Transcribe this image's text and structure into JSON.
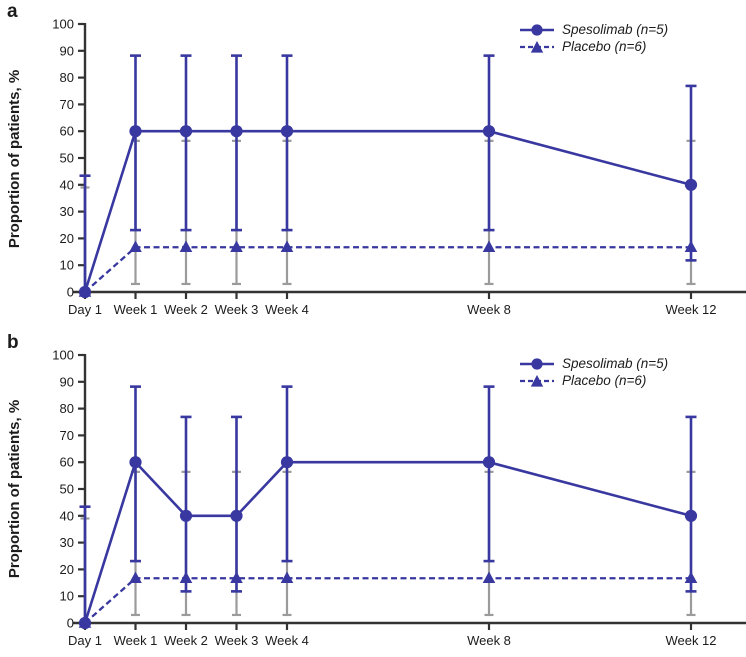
{
  "colors": {
    "series_blue": "#3838A0",
    "placebo_error_gray": "#9B9B9B",
    "axis": "#333333",
    "text": "#1C1C1C",
    "background": "#FFFFFF"
  },
  "chart_data": [
    {
      "type": "line",
      "panel_label": "a",
      "title": "",
      "xlabel": "",
      "ylabel": "Proportion of patients, %",
      "ylim": [
        0,
        100
      ],
      "ytick_interval": 10,
      "grid": false,
      "legend_position": "top-right",
      "categories": [
        "Day 1",
        "Week 1",
        "Week 2",
        "Week 3",
        "Week 4",
        "Week 8",
        "Week 12"
      ],
      "x_weeks": [
        0,
        1,
        2,
        3,
        4,
        8,
        12
      ],
      "series": [
        {
          "name": "Spesolimab (n=5)",
          "marker": "circle",
          "line_style": "solid",
          "color": "#3838A0",
          "error_color": "#3838A0",
          "values": [
            0,
            60,
            60,
            60,
            60,
            60,
            40
          ],
          "ci_lower": [
            0,
            23.1,
            23.1,
            23.1,
            23.1,
            23.1,
            11.8
          ],
          "ci_upper": [
            43.4,
            88.2,
            88.2,
            88.2,
            88.2,
            88.2,
            76.9
          ]
        },
        {
          "name": "Placebo (n=6)",
          "marker": "triangle",
          "line_style": "dashed",
          "color": "#3838A0",
          "error_color": "#9B9B9B",
          "values": [
            0,
            16.7,
            16.7,
            16.7,
            16.7,
            16.7,
            16.7
          ],
          "ci_lower": [
            0,
            3.0,
            3.0,
            3.0,
            3.0,
            3.0,
            3.0
          ],
          "ci_upper": [
            39.0,
            56.4,
            56.4,
            56.4,
            56.4,
            56.4,
            56.4
          ]
        }
      ]
    },
    {
      "type": "line",
      "panel_label": "b",
      "title": "",
      "xlabel": "",
      "ylabel": "Proportion of patients, %",
      "ylim": [
        0,
        100
      ],
      "ytick_interval": 10,
      "grid": false,
      "legend_position": "top-right",
      "categories": [
        "Day 1",
        "Week 1",
        "Week 2",
        "Week 3",
        "Week 4",
        "Week 8",
        "Week 12"
      ],
      "x_weeks": [
        0,
        1,
        2,
        3,
        4,
        8,
        12
      ],
      "series": [
        {
          "name": "Spesolimab (n=5)",
          "marker": "circle",
          "line_style": "solid",
          "color": "#3838A0",
          "error_color": "#3838A0",
          "values": [
            0,
            60,
            40,
            40,
            60,
            60,
            40
          ],
          "ci_lower": [
            0,
            23.1,
            11.8,
            11.8,
            23.1,
            23.1,
            11.8
          ],
          "ci_upper": [
            43.4,
            88.2,
            76.9,
            76.9,
            88.2,
            88.2,
            76.9
          ]
        },
        {
          "name": "Placebo (n=6)",
          "marker": "triangle",
          "line_style": "dashed",
          "color": "#3838A0",
          "error_color": "#9B9B9B",
          "values": [
            0,
            16.7,
            16.7,
            16.7,
            16.7,
            16.7,
            16.7
          ],
          "ci_lower": [
            0,
            3.0,
            3.0,
            3.0,
            3.0,
            3.0,
            3.0
          ],
          "ci_upper": [
            39.0,
            56.4,
            56.4,
            56.4,
            56.4,
            56.4,
            56.4
          ]
        }
      ]
    }
  ]
}
